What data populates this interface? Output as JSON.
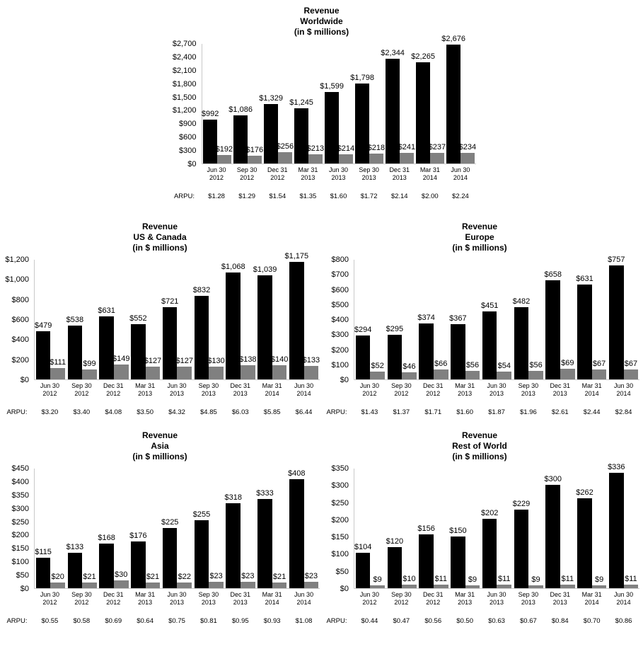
{
  "colors": {
    "bar_primary": "#000000",
    "bar_secondary": "#808080",
    "axis": "#c9c9c9"
  },
  "chart_data": [
    {
      "id": "worldwide",
      "type": "bar",
      "title": "Revenue Worldwide (in $ millions)",
      "title_lines": [
        "Revenue",
        "Worldwide",
        "(in $ millions)"
      ],
      "y_max": 2700,
      "y_step": 300,
      "y_tick_labels": [
        "$0",
        "$300",
        "$600",
        "$900",
        "$1,200",
        "$1,500",
        "$1,800",
        "$2,100",
        "$2,400",
        "$2,700"
      ],
      "categories": [
        [
          "Jun 30",
          "2012"
        ],
        [
          "Sep 30",
          "2012"
        ],
        [
          "Dec 31",
          "2012"
        ],
        [
          "Mar 31",
          "2013"
        ],
        [
          "Jun 30",
          "2013"
        ],
        [
          "Sep 30",
          "2013"
        ],
        [
          "Dec 31",
          "2013"
        ],
        [
          "Mar 31",
          "2014"
        ],
        [
          "Jun 30",
          "2014"
        ]
      ],
      "series": [
        {
          "name": "revenue-black",
          "color": "#000000",
          "values": [
            992,
            1086,
            1329,
            1245,
            1599,
            1798,
            2344,
            2265,
            2676
          ],
          "labels": [
            "$992",
            "$1,086",
            "$1,329",
            "$1,245",
            "$1,599",
            "$1,798",
            "$2,344",
            "$2,265",
            "$2,676"
          ]
        },
        {
          "name": "secondary-gray",
          "color": "#808080",
          "values": [
            192,
            176,
            256,
            213,
            214,
            218,
            241,
            237,
            234
          ],
          "labels": [
            "$192",
            "$176",
            "$256",
            "$213",
            "$214",
            "$218",
            "$241",
            "$237",
            "$234"
          ]
        }
      ],
      "arpu_label": "ARPU:",
      "arpu_values": [
        "$1.28",
        "$1.29",
        "$1.54",
        "$1.35",
        "$1.60",
        "$1.72",
        "$2.14",
        "$2.00",
        "$2.24"
      ]
    },
    {
      "id": "us-canada",
      "type": "bar",
      "title": "Revenue US & Canada (in $ millions)",
      "title_lines": [
        "Revenue",
        "US & Canada",
        "(in $ millions)"
      ],
      "y_max": 1200,
      "y_step": 200,
      "y_tick_labels": [
        "$0",
        "$200",
        "$400",
        "$600",
        "$800",
        "$1,000",
        "$1,200"
      ],
      "categories": [
        [
          "Jun 30",
          "2012"
        ],
        [
          "Sep 30",
          "2012"
        ],
        [
          "Dec 31",
          "2012"
        ],
        [
          "Mar 31",
          "2013"
        ],
        [
          "Jun 30",
          "2013"
        ],
        [
          "Sep 30",
          "2013"
        ],
        [
          "Dec 31",
          "2013"
        ],
        [
          "Mar 31",
          "2014"
        ],
        [
          "Jun 30",
          "2014"
        ]
      ],
      "series": [
        {
          "name": "revenue-black",
          "color": "#000000",
          "values": [
            479,
            538,
            631,
            552,
            721,
            832,
            1068,
            1039,
            1175
          ],
          "labels": [
            "$479",
            "$538",
            "$631",
            "$552",
            "$721",
            "$832",
            "$1,068",
            "$1,039",
            "$1,175"
          ]
        },
        {
          "name": "secondary-gray",
          "color": "#808080",
          "values": [
            111,
            99,
            149,
            127,
            127,
            130,
            138,
            140,
            133
          ],
          "labels": [
            "$111",
            "$99",
            "$149",
            "$127",
            "$127",
            "$130",
            "$138",
            "$140",
            "$133"
          ]
        }
      ],
      "arpu_label": "ARPU:",
      "arpu_values": [
        "$3.20",
        "$3.40",
        "$4.08",
        "$3.50",
        "$4.32",
        "$4.85",
        "$6.03",
        "$5.85",
        "$6.44"
      ]
    },
    {
      "id": "europe",
      "type": "bar",
      "title": "Revenue Europe (in $ millions)",
      "title_lines": [
        "Revenue",
        "Europe",
        "(in $ millions)"
      ],
      "y_max": 800,
      "y_step": 100,
      "y_tick_labels": [
        "$0",
        "$100",
        "$200",
        "$300",
        "$400",
        "$500",
        "$600",
        "$700",
        "$800"
      ],
      "categories": [
        [
          "Jun 30",
          "2012"
        ],
        [
          "Sep 30",
          "2012"
        ],
        [
          "Dec 31",
          "2012"
        ],
        [
          "Mar 31",
          "2013"
        ],
        [
          "Jun 30",
          "2013"
        ],
        [
          "Sep 30",
          "2013"
        ],
        [
          "Dec 31",
          "2013"
        ],
        [
          "Mar 31",
          "2014"
        ],
        [
          "Jun 30",
          "2014"
        ]
      ],
      "series": [
        {
          "name": "revenue-black",
          "color": "#000000",
          "values": [
            294,
            295,
            374,
            367,
            451,
            482,
            658,
            631,
            757
          ],
          "labels": [
            "$294",
            "$295",
            "$374",
            "$367",
            "$451",
            "$482",
            "$658",
            "$631",
            "$757"
          ]
        },
        {
          "name": "secondary-gray",
          "color": "#808080",
          "values": [
            52,
            46,
            66,
            56,
            54,
            56,
            69,
            67,
            67
          ],
          "labels": [
            "$52",
            "$46",
            "$66",
            "$56",
            "$54",
            "$56",
            "$69",
            "$67",
            "$67"
          ]
        }
      ],
      "arpu_label": "ARPU:",
      "arpu_values": [
        "$1.43",
        "$1.37",
        "$1.71",
        "$1.60",
        "$1.87",
        "$1.96",
        "$2.61",
        "$2.44",
        "$2.84"
      ]
    },
    {
      "id": "asia",
      "type": "bar",
      "title": "Revenue Asia (in $ millions)",
      "title_lines": [
        "Revenue",
        "Asia",
        "(in $ millions)"
      ],
      "y_max": 450,
      "y_step": 50,
      "y_tick_labels": [
        "$0",
        "$50",
        "$100",
        "$150",
        "$200",
        "$250",
        "$300",
        "$350",
        "$400",
        "$450"
      ],
      "categories": [
        [
          "Jun 30",
          "2012"
        ],
        [
          "Sep 30",
          "2012"
        ],
        [
          "Dec 31",
          "2012"
        ],
        [
          "Mar 31",
          "2013"
        ],
        [
          "Jun 30",
          "2013"
        ],
        [
          "Sep 30",
          "2013"
        ],
        [
          "Dec 31",
          "2013"
        ],
        [
          "Mar 31",
          "2014"
        ],
        [
          "Jun 30",
          "2014"
        ]
      ],
      "series": [
        {
          "name": "revenue-black",
          "color": "#000000",
          "values": [
            115,
            133,
            168,
            176,
            225,
            255,
            318,
            333,
            408
          ],
          "labels": [
            "$115",
            "$133",
            "$168",
            "$176",
            "$225",
            "$255",
            "$318",
            "$333",
            "$408"
          ]
        },
        {
          "name": "secondary-gray",
          "color": "#808080",
          "values": [
            20,
            21,
            30,
            21,
            22,
            23,
            23,
            21,
            23
          ],
          "labels": [
            "$20",
            "$21",
            "$30",
            "$21",
            "$22",
            "$23",
            "$23",
            "$21",
            "$23"
          ]
        }
      ],
      "arpu_label": "ARPU:",
      "arpu_values": [
        "$0.55",
        "$0.58",
        "$0.69",
        "$0.64",
        "$0.75",
        "$0.81",
        "$0.95",
        "$0.93",
        "$1.08"
      ]
    },
    {
      "id": "rest-of-world",
      "type": "bar",
      "title": "Revenue Rest of World (in $ millions)",
      "title_lines": [
        "Revenue",
        "Rest of World",
        "(in $ millions)"
      ],
      "y_max": 350,
      "y_step": 50,
      "y_tick_labels": [
        "$0",
        "$50",
        "$100",
        "$150",
        "$200",
        "$250",
        "$300",
        "$350"
      ],
      "categories": [
        [
          "Jun 30",
          "2012"
        ],
        [
          "Sep 30",
          "2012"
        ],
        [
          "Dec 31",
          "2012"
        ],
        [
          "Mar 31",
          "2013"
        ],
        [
          "Jun 30",
          "2013"
        ],
        [
          "Sep 30",
          "2013"
        ],
        [
          "Dec 31",
          "2013"
        ],
        [
          "Mar 31",
          "2014"
        ],
        [
          "Jun 30",
          "2014"
        ]
      ],
      "series": [
        {
          "name": "revenue-black",
          "color": "#000000",
          "values": [
            104,
            120,
            156,
            150,
            202,
            229,
            300,
            262,
            336
          ],
          "labels": [
            "$104",
            "$120",
            "$156",
            "$150",
            "$202",
            "$229",
            "$300",
            "$262",
            "$336"
          ]
        },
        {
          "name": "secondary-gray",
          "color": "#808080",
          "values": [
            9,
            10,
            11,
            9,
            11,
            9,
            11,
            9,
            11
          ],
          "labels": [
            "$9",
            "$10",
            "$11",
            "$9",
            "$11",
            "$9",
            "$11",
            "$9",
            "$11"
          ]
        }
      ],
      "arpu_label": "ARPU:",
      "arpu_values": [
        "$0.44",
        "$0.47",
        "$0.56",
        "$0.50",
        "$0.63",
        "$0.67",
        "$0.84",
        "$0.70",
        "$0.86"
      ]
    }
  ]
}
